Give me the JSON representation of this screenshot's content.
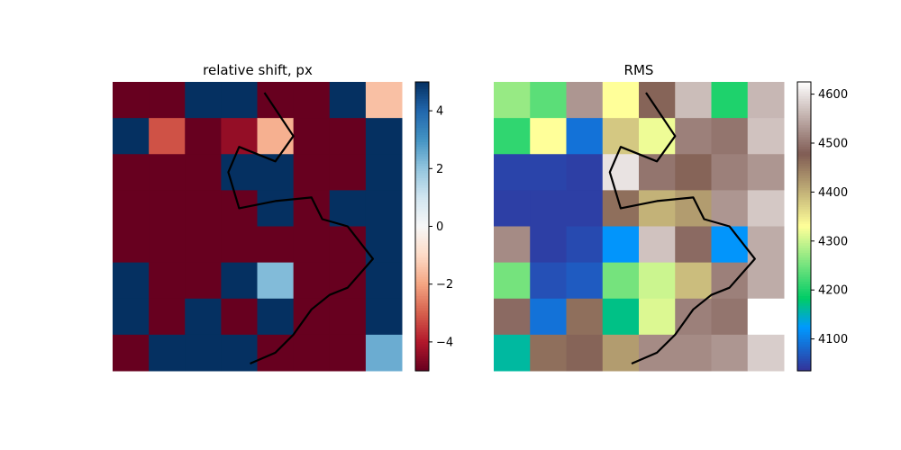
{
  "chart_data": [
    {
      "type": "heatmap",
      "title": "relative shift, px",
      "colormap": "RdBu",
      "clim": [
        -5,
        5
      ],
      "colorbar_ticks": [
        4,
        2,
        0,
        -2,
        -4
      ],
      "colorbar_tick_labels": [
        "4",
        "2",
        "0",
        "−2",
        "−4"
      ],
      "rows": 8,
      "cols": 8,
      "values": [
        [
          -5,
          -5,
          5,
          5,
          -5,
          -5,
          5,
          -1.5
        ],
        [
          5,
          -3.2,
          -5,
          -4.4,
          -1.8,
          -5,
          -5,
          5
        ],
        [
          -5,
          -5,
          -5,
          5,
          5,
          -5,
          -5,
          5
        ],
        [
          -5,
          -5,
          -5,
          -5,
          5,
          -5,
          5,
          5
        ],
        [
          -5,
          -5,
          -5,
          -5,
          -5,
          -5,
          -5,
          5
        ],
        [
          5,
          -5,
          -5,
          5,
          2.2,
          -5,
          -5,
          5
        ],
        [
          5,
          -5,
          5,
          -5,
          5,
          -5,
          -5,
          5
        ],
        [
          -5,
          5,
          5,
          5,
          -5,
          -5,
          -5,
          2.5
        ]
      ],
      "boundary_line": [
        [
          4.2,
          0.3
        ],
        [
          5.0,
          1.5
        ],
        [
          4.5,
          2.2
        ],
        [
          3.5,
          1.8
        ],
        [
          3.2,
          2.5
        ],
        [
          3.5,
          3.5
        ],
        [
          4.5,
          3.3
        ],
        [
          5.5,
          3.2
        ],
        [
          5.8,
          3.8
        ],
        [
          6.5,
          4.0
        ],
        [
          7.2,
          4.9
        ],
        [
          6.5,
          5.7
        ],
        [
          6.0,
          5.9
        ],
        [
          5.5,
          6.3
        ],
        [
          5.0,
          7.0
        ],
        [
          4.5,
          7.5
        ],
        [
          3.8,
          7.8
        ]
      ],
      "xlabel": "",
      "ylabel": ""
    },
    {
      "type": "heatmap",
      "title": "RMS",
      "colormap": "terrain",
      "clim": [
        4035,
        4625
      ],
      "colorbar_ticks": [
        4600,
        4500,
        4400,
        4300,
        4200,
        4100
      ],
      "colorbar_tick_labels": [
        "4600",
        "4500",
        "4400",
        "4300",
        "4200",
        "4100"
      ],
      "rows": 8,
      "cols": 8,
      "values": [
        [
          4270,
          4235,
          4530,
          4330,
          4470,
          4565,
          4200,
          4560
        ],
        [
          4210,
          4330,
          4090,
          4380,
          4320,
          4510,
          4500,
          4570
        ],
        [
          4050,
          4050,
          4045,
          4600,
          4500,
          4470,
          4510,
          4530
        ],
        [
          4045,
          4045,
          4045,
          4460,
          4400,
          4420,
          4530,
          4575
        ],
        [
          4520,
          4045,
          4055,
          4120,
          4570,
          4490,
          4120,
          4550
        ],
        [
          4250,
          4060,
          4070,
          4250,
          4300,
          4390,
          4510,
          4550
        ],
        [
          4490,
          4090,
          4460,
          4170,
          4310,
          4510,
          4500,
          4625
        ],
        [
          4160,
          4460,
          4470,
          4420,
          4520,
          4520,
          4530,
          4580
        ]
      ],
      "boundary_line": [
        [
          4.2,
          0.3
        ],
        [
          5.0,
          1.5
        ],
        [
          4.5,
          2.2
        ],
        [
          3.5,
          1.8
        ],
        [
          3.2,
          2.5
        ],
        [
          3.5,
          3.5
        ],
        [
          4.5,
          3.3
        ],
        [
          5.5,
          3.2
        ],
        [
          5.8,
          3.8
        ],
        [
          6.5,
          4.0
        ],
        [
          7.2,
          4.9
        ],
        [
          6.5,
          5.7
        ],
        [
          6.0,
          5.9
        ],
        [
          5.5,
          6.3
        ],
        [
          5.0,
          7.0
        ],
        [
          4.5,
          7.5
        ],
        [
          3.8,
          7.8
        ]
      ],
      "xlabel": "",
      "ylabel": ""
    }
  ]
}
